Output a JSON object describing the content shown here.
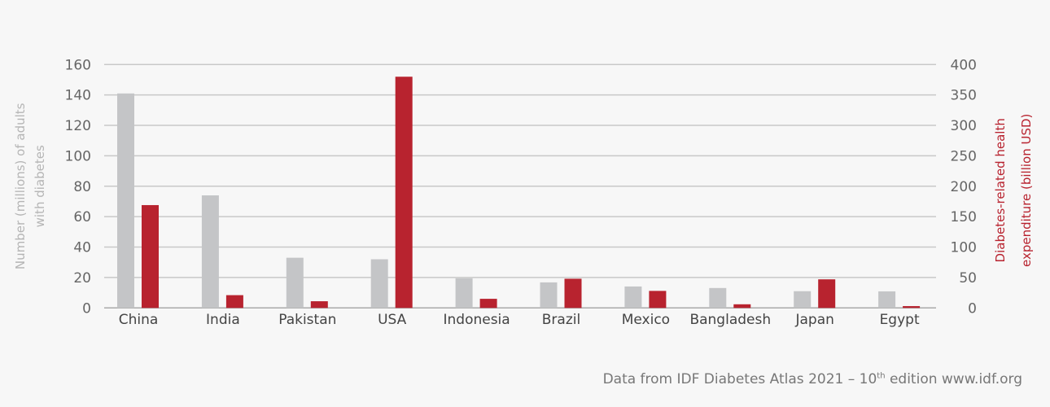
{
  "chart_data": {
    "type": "bar",
    "categories": [
      "China",
      "India",
      "Pakistan",
      "USA",
      "Indonesia",
      "Brazil",
      "Mexico",
      "Bangladesh",
      "Japan",
      "Egypt"
    ],
    "series": [
      {
        "name": "Number (millions) of adults with diabetes",
        "axis": "left",
        "color": "#c4c5c7",
        "values": [
          141,
          74,
          33,
          32,
          19.5,
          16.8,
          14.1,
          13.1,
          11,
          10.9
        ]
      },
      {
        "name": "Diabetes-related health expenditure (billion USD)",
        "axis": "right",
        "color": "#b8232f",
        "values": [
          169,
          21,
          11,
          380,
          15,
          48,
          28,
          6,
          47,
          3
        ]
      }
    ],
    "ylabel_left": [
      "Number (millions) of adults",
      "with diabetes"
    ],
    "ylabel_right": [
      "Diabetes-related health",
      "expenditure (billion USD)"
    ],
    "ylim_left": [
      0,
      160
    ],
    "ylim_right": [
      0,
      400
    ],
    "yticks_left": [
      0,
      20,
      40,
      60,
      80,
      100,
      120,
      140,
      160
    ],
    "yticks_right": [
      0,
      50,
      100,
      150,
      200,
      250,
      300,
      350,
      400
    ],
    "grid": true
  },
  "source": {
    "prefix": "Data from IDF Diabetes Atlas 2021 – 10",
    "sup": "th",
    "suffix": " edition www.idf.org"
  }
}
